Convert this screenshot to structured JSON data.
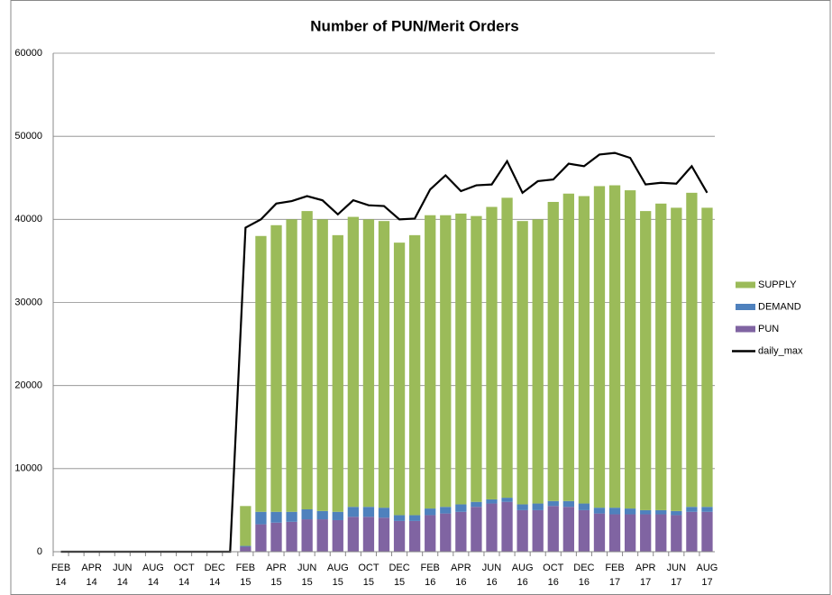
{
  "chart_data": {
    "type": "bar",
    "stacked": true,
    "title": "Number of PUN/Merit Orders",
    "categories": [
      "FEB 14",
      null,
      "APR 14",
      null,
      "JUN 14",
      null,
      "AUG 14",
      null,
      "OCT 14",
      null,
      "DEC 14",
      null,
      "FEB 15",
      null,
      "APR 15",
      null,
      "JUN 15",
      null,
      "AUG 15",
      null,
      "OCT 15",
      null,
      "DEC 15",
      null,
      "FEB 16",
      null,
      "APR 16",
      null,
      "JUN 16",
      null,
      "AUG 16",
      null,
      "OCT 16",
      null,
      "DEC 16",
      null,
      "FEB 17",
      null,
      "APR 17",
      null,
      "JUN 17",
      null,
      "AUG 17"
    ],
    "series": [
      {
        "name": "PUN",
        "color": "#8064a2",
        "values": [
          0,
          0,
          0,
          0,
          0,
          0,
          0,
          0,
          0,
          0,
          0,
          0,
          600,
          3300,
          3500,
          3600,
          3900,
          3900,
          3800,
          4200,
          4200,
          4100,
          3700,
          3700,
          4400,
          4600,
          4800,
          5400,
          5800,
          6000,
          5000,
          5000,
          5500,
          5400,
          5000,
          4600,
          4500,
          4500,
          4500,
          4500,
          4400,
          4800,
          4800
        ]
      },
      {
        "name": "DEMAND",
        "color": "#4f81bd",
        "values": [
          0,
          0,
          0,
          0,
          0,
          0,
          0,
          0,
          0,
          0,
          0,
          0,
          100,
          1500,
          1300,
          1200,
          1200,
          1000,
          1000,
          1200,
          1200,
          1200,
          700,
          700,
          800,
          800,
          900,
          600,
          500,
          500,
          700,
          800,
          600,
          700,
          800,
          700,
          800,
          700,
          500,
          500,
          500,
          600,
          600
        ]
      },
      {
        "name": "SUPPLY",
        "color": "#9bbb59",
        "values": [
          0,
          0,
          0,
          0,
          0,
          0,
          0,
          0,
          0,
          0,
          0,
          0,
          4800,
          33200,
          34500,
          35200,
          35900,
          35100,
          33300,
          34900,
          34600,
          34500,
          32800,
          33700,
          35300,
          35100,
          35000,
          34400,
          35200,
          36100,
          34100,
          34200,
          36000,
          37000,
          37000,
          38700,
          38800,
          38300,
          36000,
          36900,
          36500,
          37800,
          36000
        ]
      },
      {
        "name": "daily_max",
        "type": "line",
        "color": "#000000",
        "values": [
          0,
          0,
          0,
          0,
          0,
          0,
          0,
          0,
          0,
          0,
          0,
          0,
          39000,
          40000,
          41900,
          42200,
          42800,
          42300,
          40600,
          42300,
          41700,
          41600,
          40000,
          40100,
          43600,
          45300,
          43400,
          44100,
          44200,
          47000,
          43200,
          44600,
          44800,
          46700,
          46400,
          47800,
          48000,
          47400,
          44200,
          44400,
          44300,
          46400,
          43200
        ]
      }
    ],
    "ylim": [
      0,
      60000
    ],
    "yticks": [
      0,
      10000,
      20000,
      30000,
      40000,
      50000,
      60000
    ],
    "grid": true,
    "legend": "right"
  }
}
